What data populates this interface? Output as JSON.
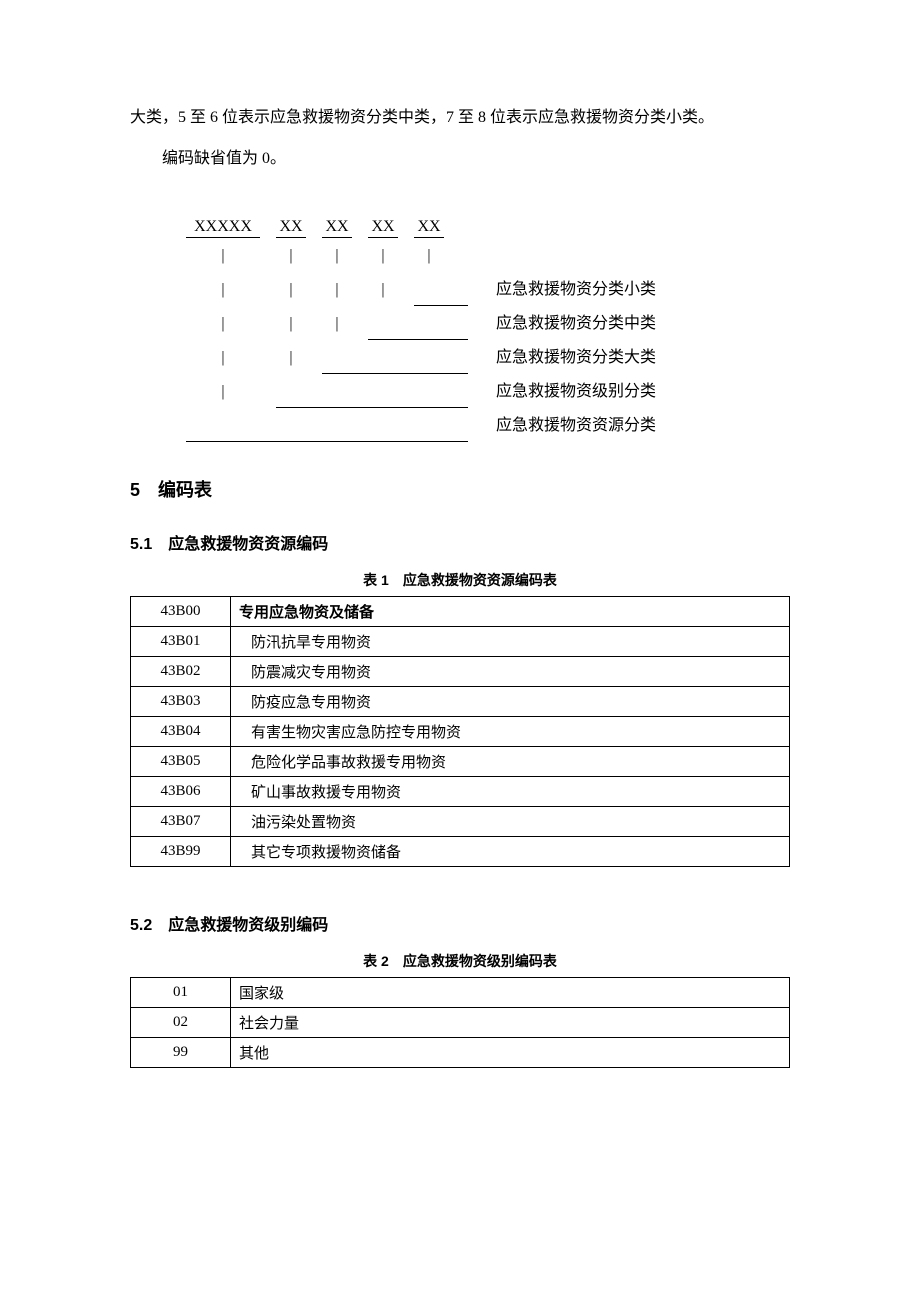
{
  "intro": {
    "para1": "大类，5 至 6 位表示应急救援物资分类中类，7 至 8 位表示应急救援物资分类小类。",
    "para2": "编码缺省值为 0。"
  },
  "diagram": {
    "codes": [
      "XXXXX",
      "XX",
      "XX",
      "XX",
      "XX"
    ],
    "labels": [
      "应急救援物资分类小类",
      "应急救援物资分类中类",
      "应急救援物资分类大类",
      "应急救援物资级别分类",
      "应急救援物资资源分类"
    ]
  },
  "section5": {
    "heading": "5　编码表",
    "sub1": {
      "heading": "5.1　应急救援物资资源编码",
      "caption": "表 1　应急救援物资资源编码表",
      "rows": [
        {
          "code": "43B00",
          "desc": "专用应急物资及储备",
          "bold": true
        },
        {
          "code": "43B01",
          "desc": "防汛抗旱专用物资"
        },
        {
          "code": "43B02",
          "desc": "防震减灾专用物资"
        },
        {
          "code": "43B03",
          "desc": "防疫应急专用物资"
        },
        {
          "code": "43B04",
          "desc": "有害生物灾害应急防控专用物资"
        },
        {
          "code": "43B05",
          "desc": "危险化学品事故救援专用物资"
        },
        {
          "code": "43B06",
          "desc": "矿山事故救援专用物资"
        },
        {
          "code": "43B07",
          "desc": "油污染处置物资"
        },
        {
          "code": "43B99",
          "desc": "其它专项救援物资储备"
        }
      ]
    },
    "sub2": {
      "heading": "5.2　应急救援物资级别编码",
      "caption": "表 2　应急救援物资级别编码表",
      "rows": [
        {
          "code": "01",
          "desc": "国家级"
        },
        {
          "code": "02",
          "desc": "社会力量"
        },
        {
          "code": "99",
          "desc": "其他"
        }
      ]
    }
  }
}
